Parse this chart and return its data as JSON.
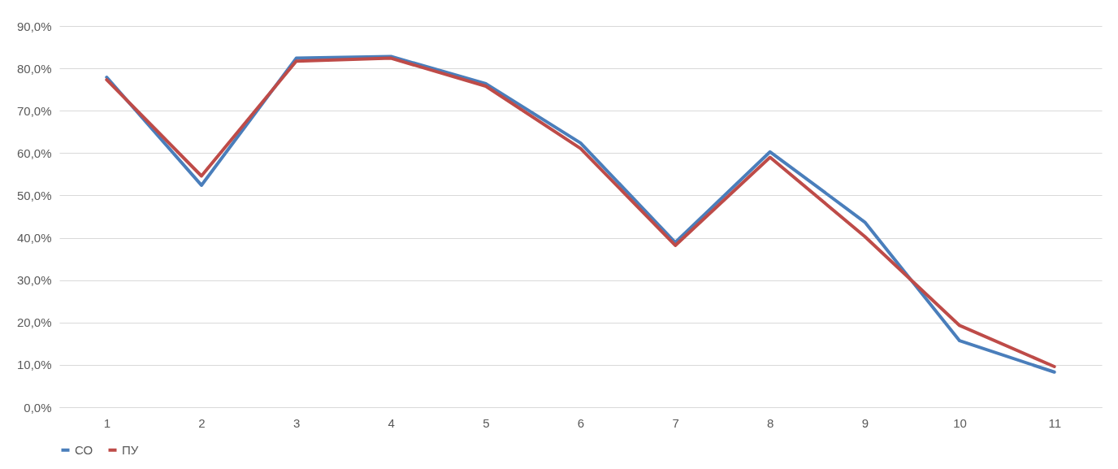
{
  "chart_data": {
    "type": "line",
    "categories": [
      "1",
      "2",
      "3",
      "4",
      "5",
      "6",
      "7",
      "8",
      "9",
      "10",
      "11"
    ],
    "series": [
      {
        "name": "СО",
        "color": "#4a7ebb",
        "values": [
          77.9,
          52.4,
          82.4,
          82.8,
          76.4,
          62.4,
          38.9,
          60.3,
          43.7,
          15.7,
          8.3
        ]
      },
      {
        "name": "ПУ",
        "color": "#be4b48",
        "values": [
          77.3,
          54.6,
          81.7,
          82.4,
          75.8,
          61.1,
          38.2,
          59.0,
          40.3,
          19.3,
          9.6
        ]
      }
    ],
    "ylim": [
      0,
      90
    ],
    "yticks": [
      {
        "value": 0,
        "label": "0,0%"
      },
      {
        "value": 10,
        "label": "10,0%"
      },
      {
        "value": 20,
        "label": "20,0%"
      },
      {
        "value": 30,
        "label": "30,0%"
      },
      {
        "value": 40,
        "label": "40,0%"
      },
      {
        "value": 50,
        "label": "50,0%"
      },
      {
        "value": 60,
        "label": "60,0%"
      },
      {
        "value": 70,
        "label": "70,0%"
      },
      {
        "value": 80,
        "label": "80,0%"
      },
      {
        "value": 90,
        "label": "90,0%"
      }
    ],
    "grid": "y",
    "legend": "bottom",
    "marker": "none",
    "line_style": "solid"
  }
}
